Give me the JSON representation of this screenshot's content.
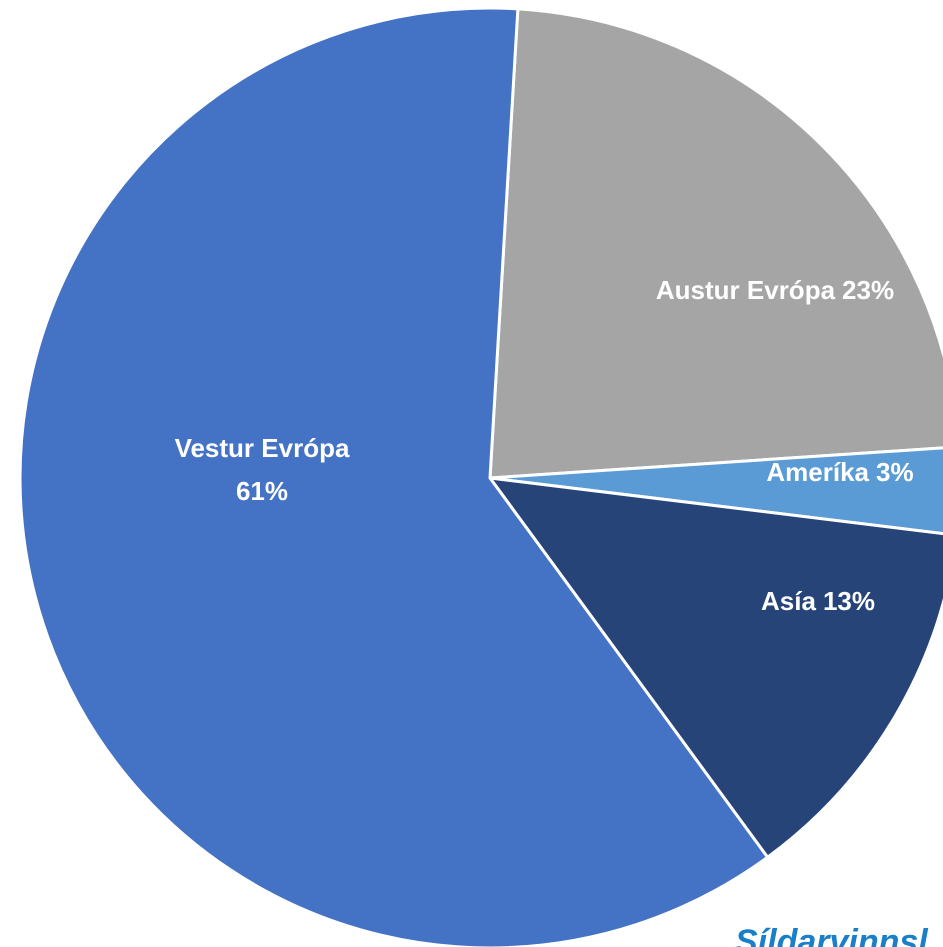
{
  "chart_data": {
    "type": "pie",
    "categories": [
      "Austur Evrópa",
      "Ameríka",
      "Asía",
      "Vestur Evrópa"
    ],
    "values": [
      23,
      3,
      13,
      61
    ],
    "value_labels": [
      "23%",
      "3%",
      "13%",
      "61%"
    ],
    "colors": [
      "#a5a5a5",
      "#5b9bd5",
      "#264478",
      "#4472c4"
    ],
    "source": "Síldarvinnsl"
  }
}
